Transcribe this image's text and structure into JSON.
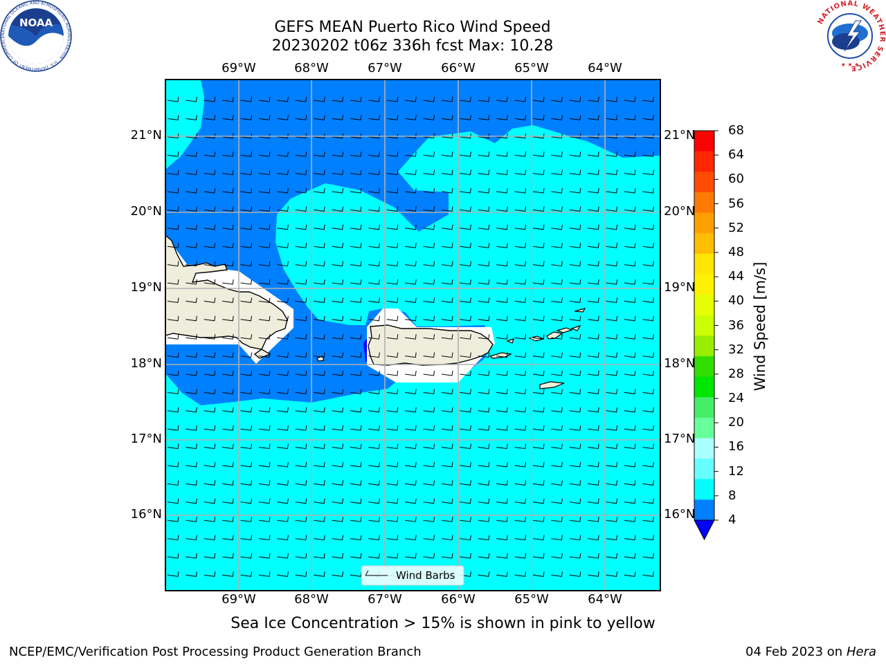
{
  "header": {
    "title_line1": "GEFS MEAN Puerto Rico Wind Speed",
    "title_line2": "20230202 t06z 336h fcst   Max: 10.28"
  },
  "map": {
    "lon_labels": [
      "69°W",
      "68°W",
      "67°W",
      "66°W",
      "65°W",
      "64°W"
    ],
    "lat_labels": [
      "21°N",
      "20°N",
      "19°N",
      "18°N",
      "17°N",
      "16°N"
    ],
    "legend_label": "Wind Barbs",
    "colors": {
      "land": "#efeedc",
      "light_wind": "#00ffff",
      "moderate_wind": "#0080ff",
      "calm": "#0000ff"
    }
  },
  "colorbar": {
    "title": "Wind Speed [m/s]",
    "ticks": [
      "68",
      "64",
      "60",
      "56",
      "52",
      "48",
      "44",
      "40",
      "36",
      "32",
      "28",
      "24",
      "20",
      "16",
      "12",
      "8",
      "4"
    ],
    "colors": [
      "#ff0000",
      "#ff2600",
      "#ff4c00",
      "#ff7a00",
      "#ffa000",
      "#ffbe00",
      "#ffe600",
      "#fff200",
      "#e6ff00",
      "#ccff00",
      "#99ee00",
      "#33dd00",
      "#00e600",
      "#44ee66",
      "#66ff99",
      "#aaffff",
      "#66ffff",
      "#00ffff",
      "#0080ff",
      "#0000ff"
    ]
  },
  "footer": {
    "note": "Sea Ice Concentration > 15% is shown in pink to yellow",
    "credit": "NCEP/EMC/Verification Post Processing Product Generation Branch",
    "date": "04 Feb 2023 on",
    "machine": "Hera"
  },
  "logos": {
    "left_text": "NOAA",
    "left_ring": "NATIONAL OCEANIC AND ATMOSPHERIC ADMINISTRATION · U.S. DEPARTMENT OF COMMERCE",
    "right_ring": "NATIONAL WEATHER SERVICE"
  }
}
